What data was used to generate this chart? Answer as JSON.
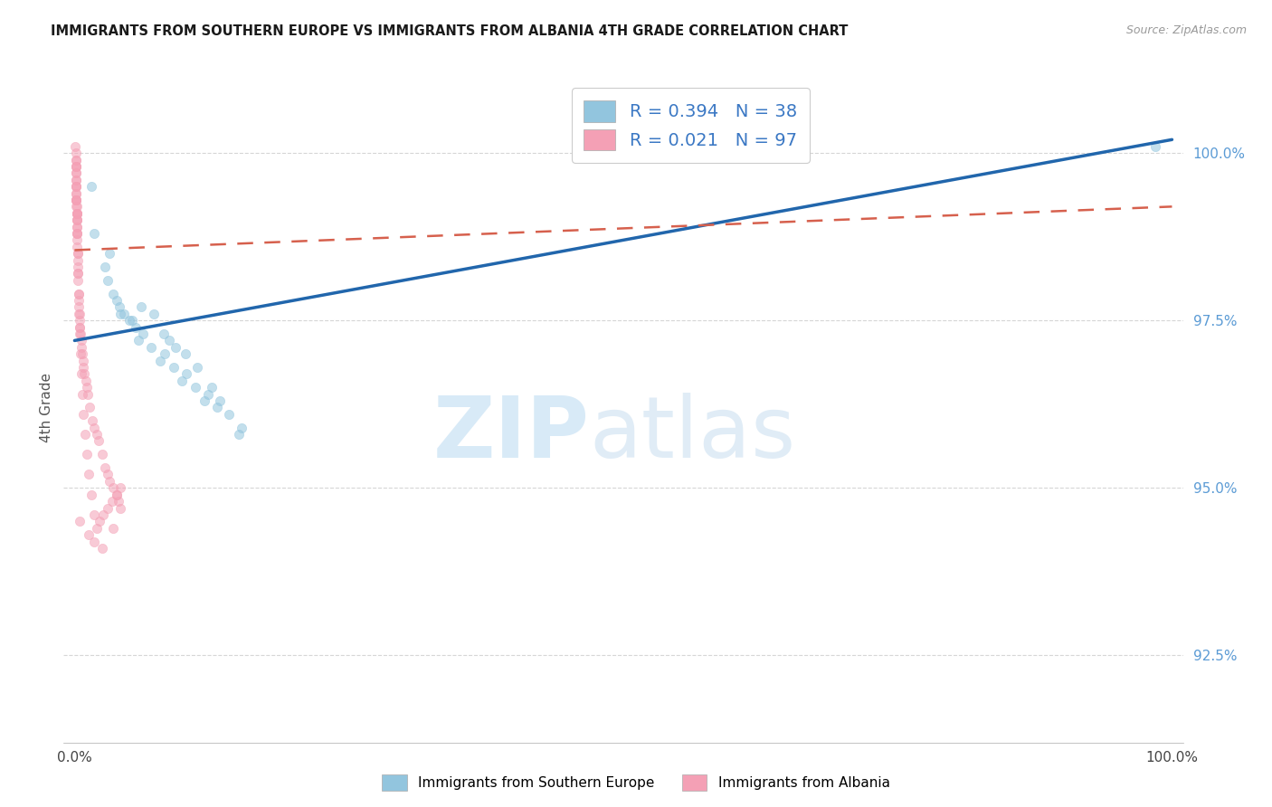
{
  "title": "IMMIGRANTS FROM SOUTHERN EUROPE VS IMMIGRANTS FROM ALBANIA 4TH GRADE CORRELATION CHART",
  "source": "Source: ZipAtlas.com",
  "ylabel": "4th Grade",
  "x_tick_labels": [
    "0.0%",
    "100.0%"
  ],
  "y_tick_values": [
    92.5,
    95.0,
    97.5,
    100.0
  ],
  "y_tick_labels": [
    "92.5%",
    "95.0%",
    "97.5%",
    "100.0%"
  ],
  "x_lim": [
    -1.0,
    101.0
  ],
  "y_lim": [
    91.2,
    101.2
  ],
  "legend_series1_label": "R = 0.394   N = 38",
  "legend_series2_label": "R = 0.021   N = 97",
  "blue_color": "#92c5de",
  "pink_color": "#f4a0b5",
  "blue_line_color": "#2166ac",
  "pink_line_color": "#d6604d",
  "bg_color": "#ffffff",
  "grid_color": "#cccccc",
  "scatter_alpha": 0.55,
  "scatter_size": 55,
  "blue_line_x0": 0.0,
  "blue_line_x1": 100.0,
  "blue_line_y0": 97.2,
  "blue_line_y1": 100.2,
  "pink_line_x0": 0.0,
  "pink_line_x1": 100.0,
  "pink_line_y0": 98.55,
  "pink_line_y1": 99.2,
  "blue_scatter_x": [
    1.5,
    1.8,
    3.2,
    3.5,
    4.1,
    4.5,
    5.2,
    5.6,
    6.1,
    7.2,
    8.1,
    8.6,
    9.2,
    10.1,
    11.2,
    12.5,
    13.2,
    14.1,
    15.2,
    2.8,
    3.8,
    5.8,
    7.8,
    9.8,
    11.8,
    3.0,
    5.0,
    7.0,
    9.0,
    11.0,
    13.0,
    15.0,
    4.2,
    6.2,
    8.2,
    10.2,
    12.2,
    98.5
  ],
  "blue_scatter_y": [
    99.5,
    98.8,
    98.5,
    97.9,
    97.7,
    97.6,
    97.5,
    97.4,
    97.7,
    97.6,
    97.3,
    97.2,
    97.1,
    97.0,
    96.8,
    96.5,
    96.3,
    96.1,
    95.9,
    98.3,
    97.8,
    97.2,
    96.9,
    96.6,
    96.3,
    98.1,
    97.5,
    97.1,
    96.8,
    96.5,
    96.2,
    95.8,
    97.6,
    97.3,
    97.0,
    96.7,
    96.4,
    100.1
  ],
  "pink_scatter_x": [
    0.08,
    0.09,
    0.1,
    0.1,
    0.11,
    0.11,
    0.12,
    0.12,
    0.13,
    0.13,
    0.14,
    0.14,
    0.15,
    0.15,
    0.16,
    0.16,
    0.17,
    0.17,
    0.18,
    0.18,
    0.19,
    0.19,
    0.2,
    0.2,
    0.21,
    0.21,
    0.22,
    0.22,
    0.23,
    0.24,
    0.25,
    0.26,
    0.27,
    0.28,
    0.3,
    0.32,
    0.35,
    0.38,
    0.4,
    0.42,
    0.45,
    0.48,
    0.5,
    0.55,
    0.6,
    0.65,
    0.7,
    0.75,
    0.8,
    0.9,
    1.0,
    1.1,
    1.2,
    1.4,
    1.6,
    1.8,
    2.0,
    2.2,
    2.5,
    2.8,
    3.0,
    3.2,
    3.5,
    3.8,
    4.0,
    4.2,
    0.1,
    0.13,
    0.16,
    0.19,
    0.22,
    0.26,
    0.3,
    0.35,
    0.4,
    0.46,
    0.52,
    0.6,
    0.7,
    0.82,
    0.96,
    1.12,
    1.3,
    1.5,
    1.75,
    2.0,
    2.3,
    2.6,
    3.0,
    3.4,
    3.8,
    4.2,
    0.5,
    1.3,
    1.8,
    2.5,
    3.5
  ],
  "pink_scatter_y": [
    100.1,
    99.9,
    99.8,
    100.0,
    99.7,
    99.9,
    99.6,
    99.8,
    99.5,
    99.7,
    99.4,
    99.6,
    99.3,
    99.5,
    99.3,
    99.4,
    99.2,
    99.3,
    99.1,
    99.2,
    99.0,
    99.1,
    99.0,
    99.1,
    98.9,
    99.0,
    98.8,
    98.9,
    98.8,
    98.7,
    98.6,
    98.5,
    98.4,
    98.3,
    98.2,
    98.1,
    97.9,
    97.8,
    97.7,
    97.6,
    97.5,
    97.4,
    97.4,
    97.3,
    97.2,
    97.1,
    97.0,
    96.9,
    96.8,
    96.7,
    96.6,
    96.5,
    96.4,
    96.2,
    96.0,
    95.9,
    95.8,
    95.7,
    95.5,
    95.3,
    95.2,
    95.1,
    95.0,
    94.9,
    94.8,
    94.7,
    99.8,
    99.5,
    99.3,
    99.1,
    98.8,
    98.5,
    98.2,
    97.9,
    97.6,
    97.3,
    97.0,
    96.7,
    96.4,
    96.1,
    95.8,
    95.5,
    95.2,
    94.9,
    94.6,
    94.4,
    94.5,
    94.6,
    94.7,
    94.8,
    94.9,
    95.0,
    94.5,
    94.3,
    94.2,
    94.1,
    94.4
  ]
}
